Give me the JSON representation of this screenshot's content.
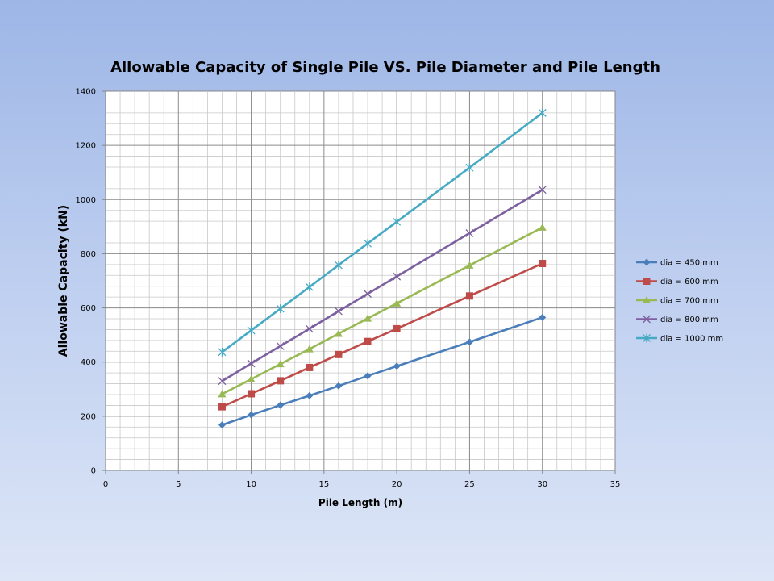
{
  "chart_data": {
    "type": "line",
    "title": "Allowable Capacity of Single Pile VS. Pile Diameter and Pile Length",
    "xlabel": "Pile Length (m)",
    "ylabel": "Allowable Capacity (kN)",
    "xlim": [
      0,
      35
    ],
    "ylim": [
      0,
      1400
    ],
    "xticks": [
      0,
      5,
      10,
      15,
      20,
      25,
      30,
      35
    ],
    "yticks": [
      0,
      200,
      400,
      600,
      800,
      1000,
      1200,
      1400
    ],
    "grid": true,
    "legend_position": "right",
    "x": [
      8,
      10,
      12,
      14,
      16,
      18,
      20,
      25,
      30
    ],
    "series": [
      {
        "name": "dia = 450 mm",
        "values": [
          168,
          205,
          241,
          276,
          312,
          349,
          385,
          474,
          565
        ],
        "color": "#4a7ebb",
        "marker": "diamond"
      },
      {
        "name": "dia = 600 mm",
        "values": [
          235,
          283,
          331,
          380,
          428,
          476,
          523,
          644,
          764
        ],
        "color": "#be4b48",
        "marker": "square"
      },
      {
        "name": "dia = 700 mm",
        "values": [
          282,
          337,
          393,
          448,
          505,
          561,
          617,
          757,
          897
        ],
        "color": "#98b954",
        "marker": "triangle"
      },
      {
        "name": "dia = 800 mm",
        "values": [
          330,
          395,
          459,
          523,
          588,
          652,
          716,
          876,
          1036
        ],
        "color": "#7d60a0",
        "marker": "x"
      },
      {
        "name": "dia = 1000 mm",
        "values": [
          437,
          517,
          597,
          677,
          758,
          838,
          918,
          1118,
          1320
        ],
        "color": "#46aac5",
        "marker": "star"
      }
    ]
  }
}
